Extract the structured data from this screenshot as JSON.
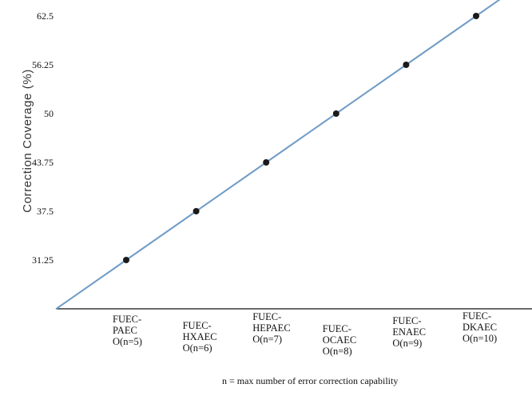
{
  "chart_data": {
    "type": "line",
    "ylabel": "Correction Coverage (%)",
    "xlabel": "",
    "note": "n = max number of error correction capability",
    "yticks": [
      31.25,
      37.5,
      43.75,
      50,
      56.25,
      62.5
    ],
    "ytick_labels": [
      "31.25",
      "37.5",
      "43.75",
      "50",
      "56.25",
      "62.5"
    ],
    "categories": [
      [
        "FUEC-",
        "PAEC",
        "O(n=5)"
      ],
      [
        "FUEC-",
        "HXAEC",
        "O(n=6)"
      ],
      [
        "FUEC-",
        "HEPAEC",
        "O(n=7)"
      ],
      [
        "FUEC-",
        "OCAEC",
        "O(n=8)"
      ],
      [
        "FUEC-",
        "ENAEC",
        "O(n=9)"
      ],
      [
        "FUEC-",
        "DKAEC",
        "O(n=10)"
      ]
    ],
    "n": [
      5,
      6,
      7,
      8,
      9,
      10
    ],
    "values": [
      31.25,
      37.5,
      43.75,
      50,
      56.25,
      62.5
    ],
    "line_color": "#6f9cc6",
    "marker_color": "#1a1a1a"
  }
}
